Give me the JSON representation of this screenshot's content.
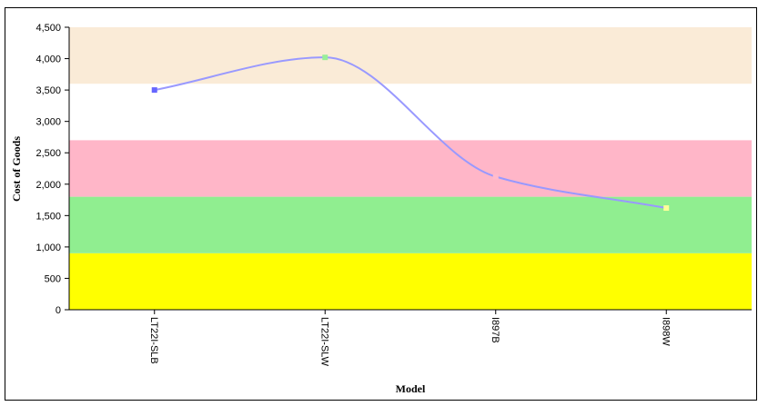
{
  "chart_data": {
    "type": "line",
    "categories": [
      "LT22I-SLB",
      "LT22I-SLW",
      "I897B",
      "I898W"
    ],
    "series": [
      {
        "values": [
          3500,
          4020,
          2120,
          1620
        ],
        "color": "#9999ff",
        "smooth": true,
        "marker_colors": [
          "#6666ff",
          "#99ee99",
          "#ffbbcc",
          "#ffff99"
        ]
      }
    ],
    "xlabel": "Model",
    "ylabel": "Cost of Goods",
    "ylim": [
      0,
      4500
    ],
    "yticks": [
      0,
      500,
      1000,
      1500,
      2000,
      2500,
      3000,
      3500,
      4000,
      4500
    ],
    "ytick_labels": [
      "0",
      "500",
      "1,000",
      "1,500",
      "2,000",
      "2,500",
      "3,000",
      "3,500",
      "4,000",
      "4,500"
    ],
    "bands": [
      {
        "from": 0,
        "to": 900,
        "color": "#ffff00"
      },
      {
        "from": 900,
        "to": 1800,
        "color": "#90ee90"
      },
      {
        "from": 1800,
        "to": 2700,
        "color": "#ffb6c8"
      },
      {
        "from": 3600,
        "to": 4500,
        "color": "#faebd7"
      }
    ],
    "x_tick_rotation": "vertical",
    "grid": false,
    "legend": "none"
  }
}
